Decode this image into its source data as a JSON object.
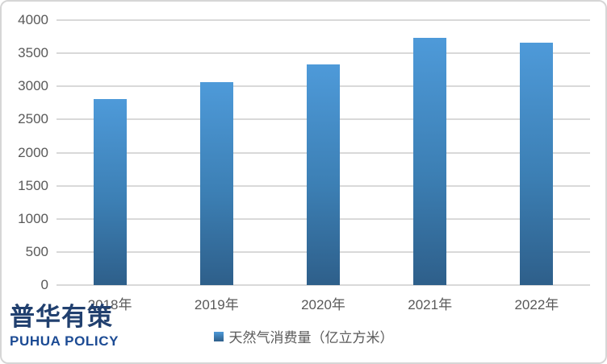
{
  "chart_data": {
    "type": "bar",
    "title": "",
    "xlabel": "",
    "ylabel": "",
    "categories": [
      "2018年",
      "2019年",
      "2020年",
      "2021年",
      "2022年"
    ],
    "values": [
      2810,
      3060,
      3330,
      3730,
      3660
    ],
    "series_name": "天然气消费量（亿立方米）",
    "ylim": [
      0,
      4000
    ],
    "yticks": [
      0,
      500,
      1000,
      1500,
      2000,
      2500,
      3000,
      3500,
      4000
    ],
    "grid": true,
    "legend_position": "bottom-center"
  },
  "legend": {
    "label": "天然气消费量（亿立方米）"
  },
  "logo": {
    "zh": "普华有策",
    "en": "PUHUA POLICY"
  },
  "colors": {
    "bar_top": "#4E9AD9",
    "bar_mid": "#3C7FB4",
    "bar_bottom": "#2E5F8A",
    "gridline": "#D9D9D9",
    "axis_text": "#595959",
    "logo_zh": "#21406F",
    "logo_en": "#1C4B94",
    "frame_border": "#D6D6D6",
    "background": "#FFFFFF"
  }
}
